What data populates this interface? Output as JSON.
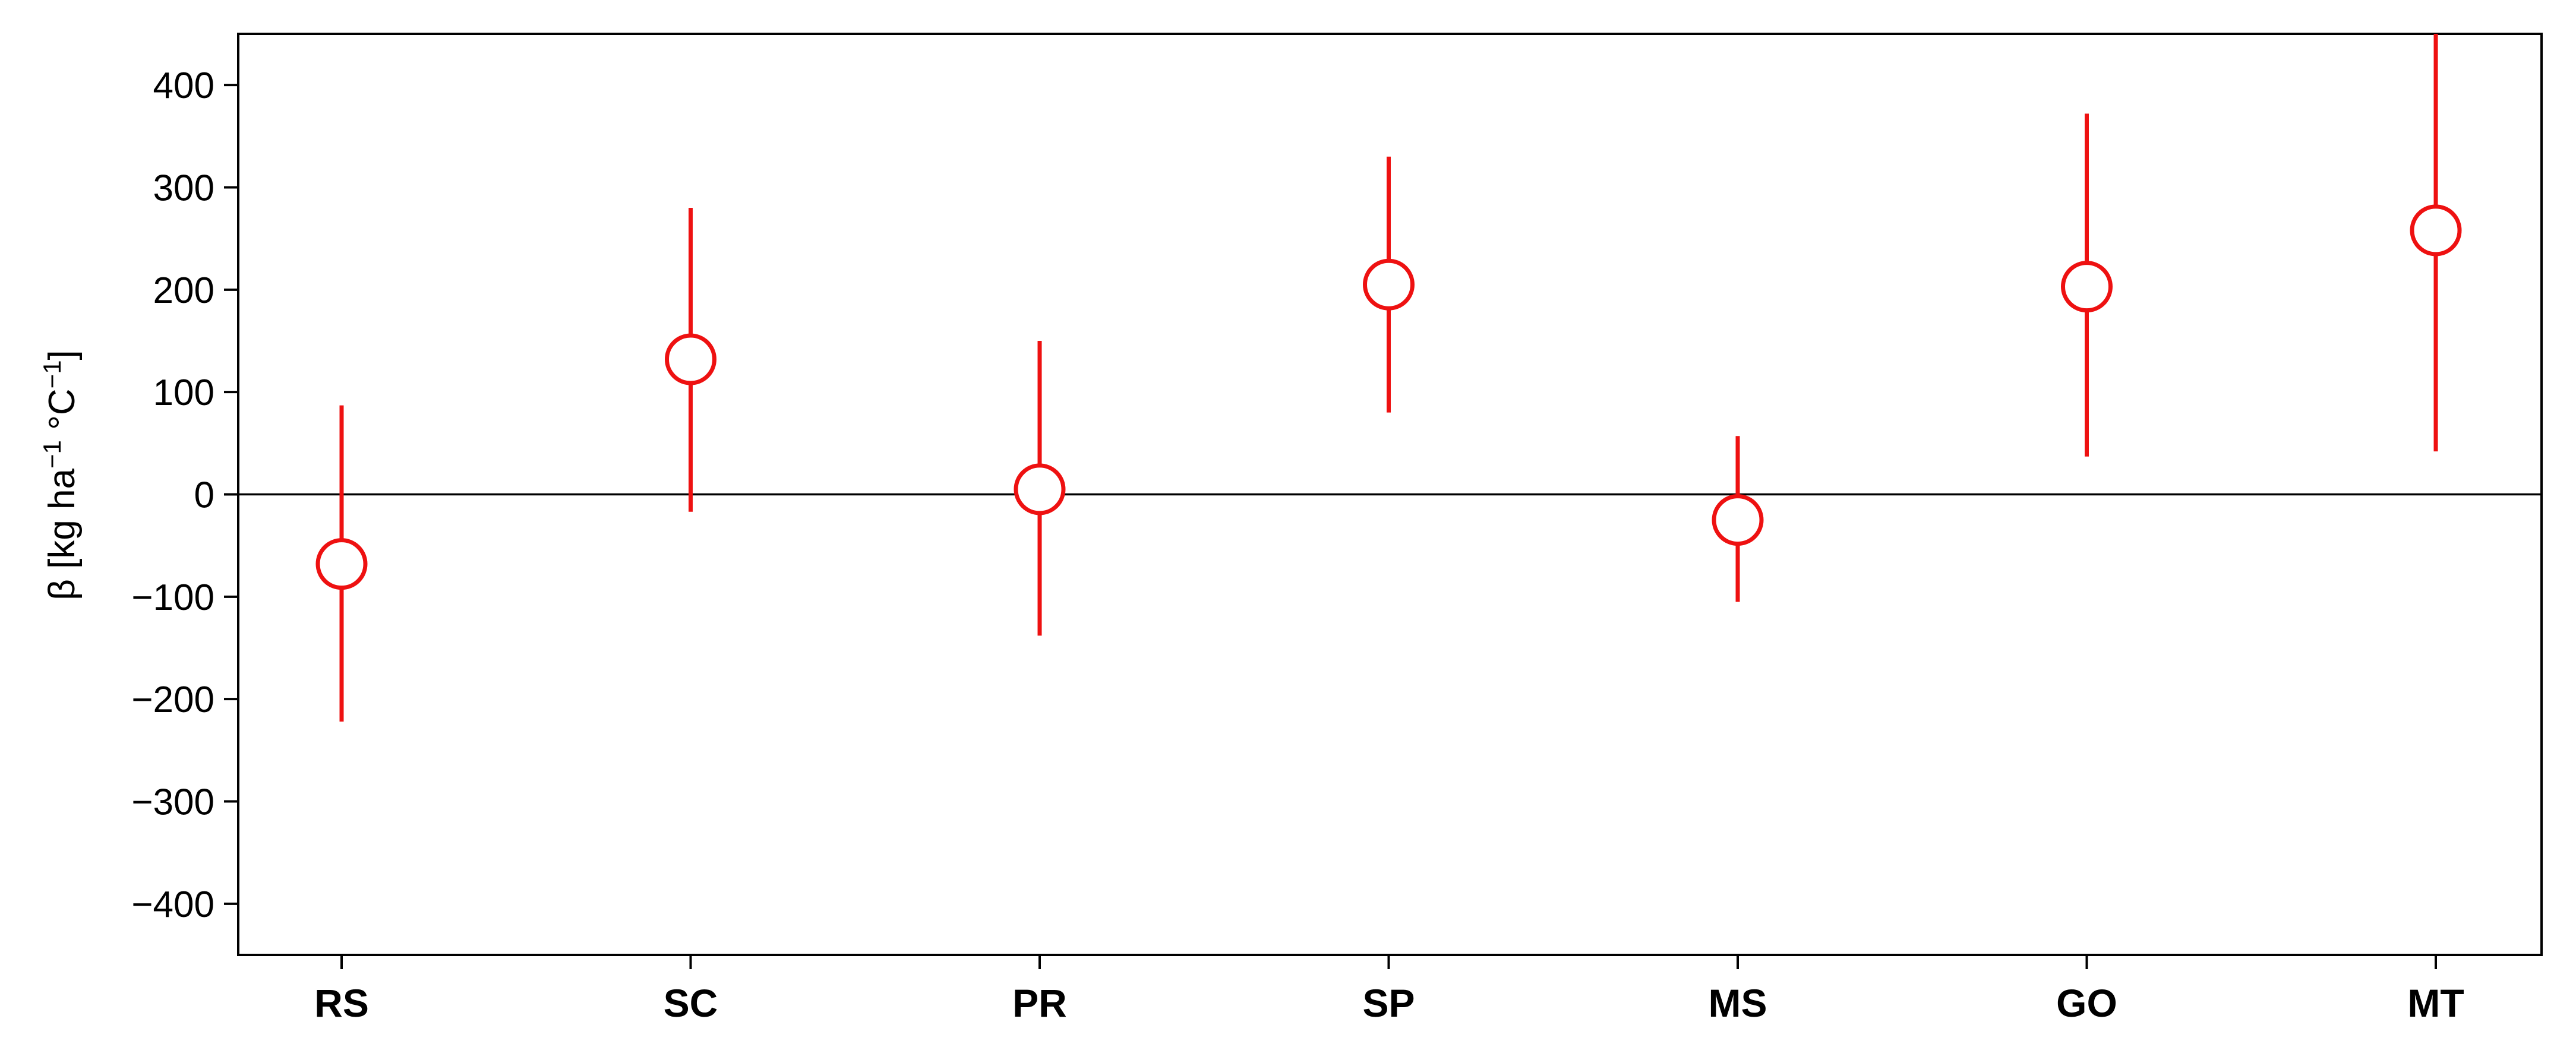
{
  "chart_data": {
    "type": "scatter",
    "title": "",
    "xlabel": "",
    "ylabel": {
      "prefix": "β [kg ha",
      "sup1": "−1",
      "middle": " °C",
      "sup2": "−1",
      "suffix": "]"
    },
    "categories": [
      "RS",
      "SC",
      "PR",
      "SP",
      "MS",
      "GO",
      "MT"
    ],
    "series": [
      {
        "values": [
          -68,
          132,
          5,
          205,
          -25,
          203,
          258
        ],
        "lower": [
          -222,
          -17,
          -138,
          80,
          -105,
          37,
          42
        ],
        "upper": [
          87,
          280,
          150,
          330,
          57,
          372,
          455
        ]
      }
    ],
    "ylim": [
      -450,
      450
    ],
    "yticks": [
      -400,
      -300,
      -200,
      -100,
      0,
      100,
      200,
      300,
      400
    ],
    "ytick_labels": [
      "−400",
      "−300",
      "−200",
      "−100",
      "0",
      "100",
      "200",
      "300",
      "400"
    ],
    "reference_line": 0,
    "marker": "open-circle",
    "grid": false,
    "legend": "none",
    "colors": {
      "series": "#ee1111",
      "axis": "#000000"
    }
  }
}
